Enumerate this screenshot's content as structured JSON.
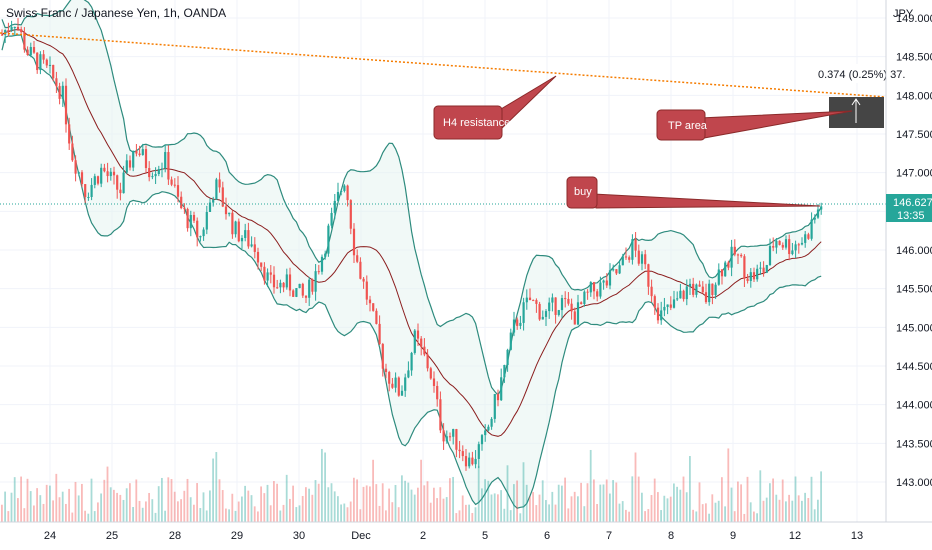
{
  "header": {
    "title": "Swiss Franc / Japanese Yen, 1h, OANDA"
  },
  "colors": {
    "up": "#26a69a",
    "down": "#ef5350",
    "band": "#2e8b7e",
    "band_fill": "#e6f4f1",
    "basis": "#8b1e1e",
    "resistance": "#f57c00",
    "callout_fill": "#c0464d",
    "price_marker": "#26a69a",
    "tp_box": "#454545"
  },
  "chart_data": {
    "type": "candlestick",
    "title": "Swiss Franc / Japanese Yen, 1h, OANDA",
    "currency": "JPY",
    "x_tick_labels": [
      "24",
      "25",
      "28",
      "29",
      "30",
      "Dec",
      "2",
      "5",
      "6",
      "7",
      "8",
      "9",
      "12",
      "13"
    ],
    "y_tick_labels": [
      "149.000",
      "148.500",
      "148.000",
      "147.500",
      "147.000",
      "146.500",
      "146.000",
      "145.500",
      "145.000",
      "144.500",
      "144.000",
      "143.500",
      "143.000"
    ],
    "ylim": [
      142.6,
      149.3
    ],
    "last_price": {
      "value": "146.627",
      "countdown": "13:35"
    },
    "measure_label": "0.374 (0.25%) 37.",
    "annotations": [
      {
        "id": "h4",
        "text": "H4 resistance"
      },
      {
        "id": "tp",
        "text": "TP area"
      },
      {
        "id": "buy",
        "text": "buy"
      }
    ],
    "price_path": [
      [
        0,
        148.75
      ],
      [
        14,
        149.0
      ],
      [
        28,
        148.55
      ],
      [
        45,
        148.35
      ],
      [
        62,
        148.05
      ],
      [
        72,
        147.25
      ],
      [
        86,
        146.75
      ],
      [
        102,
        147.05
      ],
      [
        120,
        146.75
      ],
      [
        135,
        147.35
      ],
      [
        150,
        147.05
      ],
      [
        165,
        147.15
      ],
      [
        180,
        146.55
      ],
      [
        200,
        146.15
      ],
      [
        215,
        146.85
      ],
      [
        235,
        146.25
      ],
      [
        255,
        146.05
      ],
      [
        270,
        145.55
      ],
      [
        290,
        145.55
      ],
      [
        305,
        145.35
      ],
      [
        320,
        145.85
      ],
      [
        335,
        146.55
      ],
      [
        345,
        146.95
      ],
      [
        355,
        145.95
      ],
      [
        370,
        145.25
      ],
      [
        385,
        144.45
      ],
      [
        400,
        144.15
      ],
      [
        415,
        144.85
      ],
      [
        430,
        144.45
      ],
      [
        442,
        143.65
      ],
      [
        455,
        143.55
      ],
      [
        470,
        143.25
      ],
      [
        485,
        143.55
      ],
      [
        500,
        144.25
      ],
      [
        515,
        145.05
      ],
      [
        530,
        145.35
      ],
      [
        545,
        145.15
      ],
      [
        560,
        145.35
      ],
      [
        575,
        145.15
      ],
      [
        590,
        145.45
      ],
      [
        605,
        145.55
      ],
      [
        620,
        145.75
      ],
      [
        632,
        146.05
      ],
      [
        645,
        145.75
      ],
      [
        660,
        145.15
      ],
      [
        672,
        145.25
      ],
      [
        690,
        145.55
      ],
      [
        705,
        145.35
      ],
      [
        720,
        145.75
      ],
      [
        735,
        145.95
      ],
      [
        750,
        145.65
      ],
      [
        765,
        145.75
      ],
      [
        775,
        146.15
      ],
      [
        790,
        146.05
      ],
      [
        805,
        146.15
      ],
      [
        822,
        146.63
      ]
    ]
  }
}
